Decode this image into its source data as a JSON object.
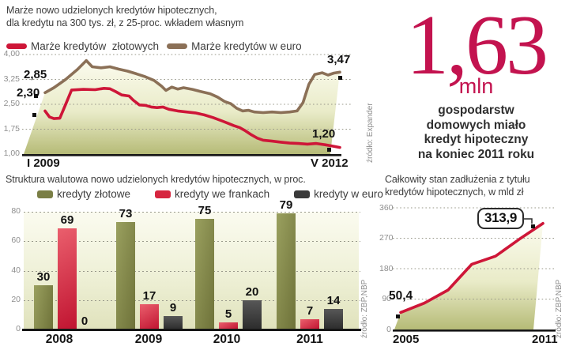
{
  "colors": {
    "accent_red": "#ce1638",
    "euro_brown": "#8b7057",
    "olive_green": "#7a7e45",
    "dark_gray_bar": "#3a3a3a",
    "stat_red": "#c3134f",
    "axis_text_gray": "#8e8e8e",
    "area_fill_bottom": "#b6bb77"
  },
  "big_stat": {
    "value": "1,63",
    "unit": "mln",
    "description_lines": [
      "gospodarstw",
      "domowych miało",
      "kredyt hipoteczny",
      "na koniec 2011 roku"
    ]
  },
  "chart_data": [
    {
      "id": "margins-line-chart",
      "type": "line",
      "title": "Marże nowo udzielonych kredytów hipotecznych, dla kredytu na 300 tys. zł, z 25-proc. wkładem własnym",
      "title_lines": [
        "Marże nowo udzielonych kredytów hipotecznych,",
        "dla kredytu na 300 tys. zł, z 25-proc. wkładem własnym"
      ],
      "ylim": [
        1.0,
        4.0
      ],
      "yticks": [
        4.0,
        3.25,
        2.5,
        1.75,
        1.0
      ],
      "ytick_labels": [
        "4,00",
        "3,25",
        "2,50",
        "1,75",
        "1,00"
      ],
      "x_axis_start_label": "I 2009",
      "x_axis_end_label": "V 2012",
      "grid": "dotted-horizontal",
      "legend_position": "top",
      "source": "źródło: Expander",
      "series": [
        {
          "name": "Marże kredytów  złotowych",
          "color": "#ce1638",
          "start_label": "2,30",
          "end_label": "1,20",
          "x": [
            0,
            0.015,
            0.03,
            0.05,
            0.07,
            0.09,
            0.13,
            0.17,
            0.2,
            0.22,
            0.24,
            0.26,
            0.285,
            0.3,
            0.32,
            0.34,
            0.36,
            0.38,
            0.4,
            0.42,
            0.45,
            0.48,
            0.51,
            0.54,
            0.57,
            0.6,
            0.62,
            0.64,
            0.66,
            0.68,
            0.7,
            0.72,
            0.74,
            0.77,
            0.8,
            0.83,
            0.86,
            0.89,
            0.92,
            0.95,
            0.975,
            1
          ],
          "y": [
            2.3,
            2.12,
            2.07,
            2.08,
            2.5,
            2.93,
            2.95,
            2.94,
            2.98,
            2.97,
            2.88,
            2.78,
            2.75,
            2.62,
            2.48,
            2.47,
            2.42,
            2.4,
            2.42,
            2.35,
            2.3,
            2.27,
            2.24,
            2.18,
            2.1,
            2.0,
            1.93,
            1.86,
            1.8,
            1.7,
            1.58,
            1.48,
            1.42,
            1.39,
            1.36,
            1.33,
            1.32,
            1.3,
            1.32,
            1.28,
            1.24,
            1.2
          ]
        },
        {
          "name": "Marże kredytów w euro",
          "color": "#8b7057",
          "area_fill": true,
          "start_label": "2,85",
          "end_label": "3,47",
          "x": [
            0,
            0.03,
            0.07,
            0.11,
            0.14,
            0.16,
            0.19,
            0.22,
            0.25,
            0.28,
            0.31,
            0.34,
            0.37,
            0.395,
            0.41,
            0.43,
            0.45,
            0.47,
            0.5,
            0.53,
            0.56,
            0.585,
            0.61,
            0.63,
            0.65,
            0.67,
            0.69,
            0.71,
            0.74,
            0.77,
            0.8,
            0.83,
            0.855,
            0.875,
            0.895,
            0.915,
            0.94,
            0.96,
            0.98,
            1
          ],
          "y": [
            2.85,
            3.0,
            3.25,
            3.55,
            3.82,
            3.63,
            3.6,
            3.63,
            3.56,
            3.5,
            3.42,
            3.33,
            3.22,
            3.05,
            2.92,
            3.02,
            2.96,
            3.0,
            2.95,
            2.88,
            2.82,
            2.72,
            2.58,
            2.52,
            2.38,
            2.3,
            2.32,
            2.27,
            2.25,
            2.27,
            2.25,
            2.27,
            2.3,
            2.55,
            3.1,
            3.4,
            3.45,
            3.38,
            3.44,
            3.47
          ]
        }
      ]
    },
    {
      "id": "currency-structure-bar-chart",
      "type": "bar",
      "title": "Struktura walutowa nowo udzielonych kredytów hipotecznych, w proc.",
      "categories": [
        "2008",
        "2009",
        "2010",
        "2011"
      ],
      "series": [
        {
          "name": "kredyty złotowe",
          "color": "#7a7e45",
          "gradient": [
            "#9aa05f",
            "#6e7239"
          ],
          "dir": "100deg",
          "values": [
            30,
            73,
            75,
            79
          ]
        },
        {
          "name": "kredyty we frankach",
          "color": "#d6253f",
          "gradient": [
            "#ea5f6d",
            "#c01330"
          ],
          "dir": "150deg",
          "values": [
            69,
            17,
            5,
            7
          ]
        },
        {
          "name": "kredyty w euro",
          "color": "#3a3a3a",
          "gradient": [
            "#575757",
            "#2c2c2c"
          ],
          "dir": "180deg",
          "values": [
            0,
            9,
            20,
            14
          ]
        }
      ],
      "ylim": [
        0,
        80
      ],
      "yticks": [
        80,
        60,
        40,
        20,
        0
      ],
      "grid": "dotted-horizontal",
      "legend_position": "top",
      "source": "źródło: ZBP,NBP"
    },
    {
      "id": "debt-area-chart",
      "type": "area",
      "title": "Całkowity stan zadłużenia z tytułu kredytów hipotecznych, w mld zł",
      "title_lines": [
        "Całkowity stan zadłużenia z tytułu",
        "kredytów hipotecznych, w mld zł"
      ],
      "color": "#ce1638",
      "x": [
        2005,
        2006,
        2007,
        2008,
        2009,
        2010,
        2011
      ],
      "values": [
        50.4,
        78,
        117,
        193,
        217,
        267,
        313.9
      ],
      "x_axis_start_label": "2005",
      "x_axis_end_label": "2011",
      "ylim": [
        0,
        360
      ],
      "yticks": [
        360,
        270,
        180,
        90,
        0
      ],
      "start_label": "50,4",
      "end_callout": "313,9",
      "grid": "dotted-horizontal",
      "source": "źródło: ZBP,NBP"
    }
  ]
}
